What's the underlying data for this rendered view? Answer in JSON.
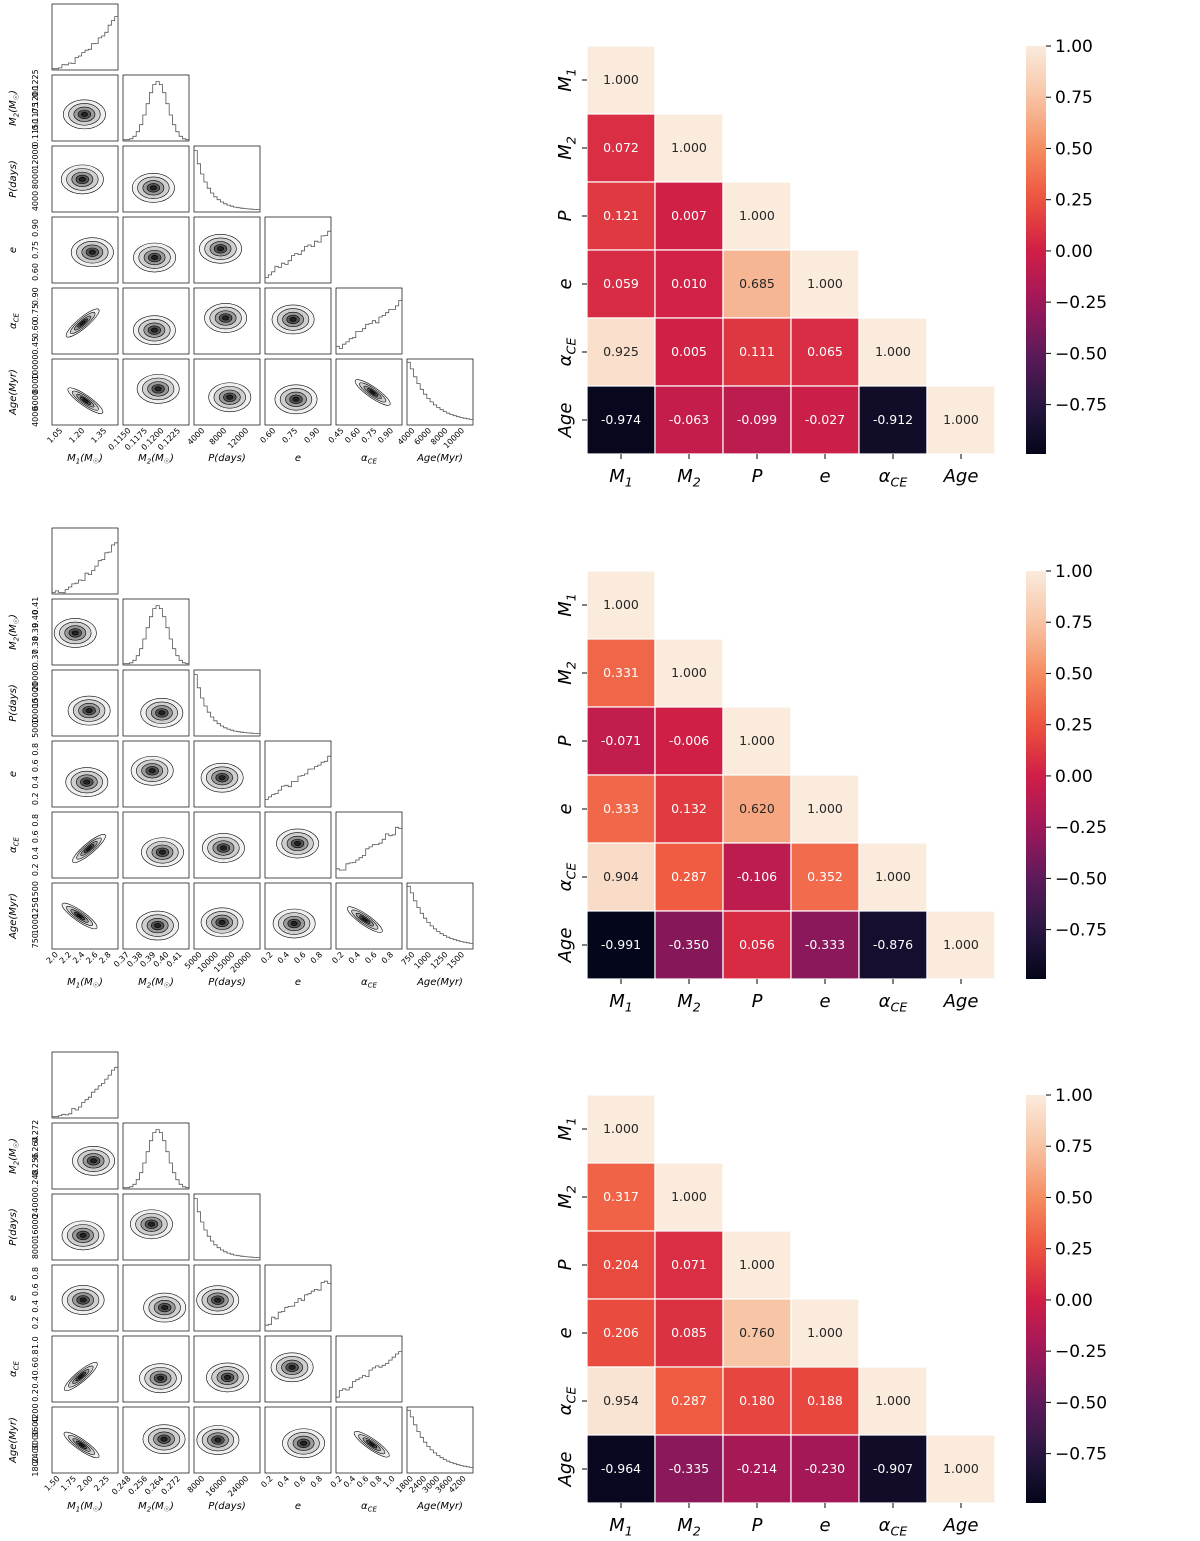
{
  "chart_data": [
    {
      "type": "corner",
      "panel": 1,
      "axis_labels": [
        "M_1(M_☉)",
        "M_2(M_☉)",
        "P(days)",
        "e",
        "α_CE",
        "Age(Myr)"
      ],
      "ticks": [
        [
          "1.05",
          "1.20",
          "1.35"
        ],
        [
          "0.1150",
          "0.1175",
          "0.1200",
          "0.1225"
        ],
        [
          "4000",
          "8000",
          "12000"
        ],
        [
          "0.60",
          "0.75",
          "0.90"
        ],
        [
          "0.45",
          "0.60",
          "0.75",
          "0.90"
        ],
        [
          "4000",
          "6000",
          "8000",
          "10000"
        ]
      ]
    },
    {
      "type": "heatmap",
      "panel": 1,
      "labels": [
        "M_1",
        "M_2",
        "P",
        "e",
        "α_CE",
        "Age"
      ],
      "matrix": [
        [
          1.0
        ],
        [
          0.072,
          1.0
        ],
        [
          0.121,
          0.007,
          1.0
        ],
        [
          0.059,
          0.01,
          0.685,
          1.0
        ],
        [
          0.925,
          0.005,
          0.111,
          0.065,
          1.0
        ],
        [
          -0.974,
          -0.063,
          -0.099,
          -0.027,
          -0.912,
          1.0
        ]
      ],
      "colorbar": {
        "range": [
          -1.0,
          1.0
        ],
        "ticks": [
          "1.00",
          "0.75",
          "0.50",
          "0.25",
          "0.00",
          "−0.25",
          "−0.50",
          "−0.75"
        ]
      }
    },
    {
      "type": "corner",
      "panel": 2,
      "axis_labels": [
        "M_1(M_☉)",
        "M_2(M_☉)",
        "P(days)",
        "e",
        "α_CE",
        "Age(Myr)"
      ],
      "ticks": [
        [
          "2.0",
          "2.2",
          "2.4",
          "2.6",
          "2.8"
        ],
        [
          "0.37",
          "0.38",
          "0.39",
          "0.40",
          "0.41"
        ],
        [
          "5000",
          "10000",
          "15000",
          "20000"
        ],
        [
          "0.2",
          "0.4",
          "0.6",
          "0.8"
        ],
        [
          "0.2",
          "0.4",
          "0.6",
          "0.8"
        ],
        [
          "750",
          "1000",
          "1250",
          "1500"
        ]
      ]
    },
    {
      "type": "heatmap",
      "panel": 2,
      "labels": [
        "M_1",
        "M_2",
        "P",
        "e",
        "α_CE",
        "Age"
      ],
      "matrix": [
        [
          1.0
        ],
        [
          0.331,
          1.0
        ],
        [
          -0.071,
          -0.006,
          1.0
        ],
        [
          0.333,
          0.132,
          0.62,
          1.0
        ],
        [
          0.904,
          0.287,
          -0.106,
          0.352,
          1.0
        ],
        [
          -0.991,
          -0.35,
          0.056,
          -0.333,
          -0.876,
          1.0
        ]
      ],
      "colorbar": {
        "range": [
          -1.0,
          1.0
        ],
        "ticks": [
          "1.00",
          "0.75",
          "0.50",
          "0.25",
          "0.00",
          "−0.25",
          "−0.50",
          "−0.75"
        ]
      }
    },
    {
      "type": "corner",
      "panel": 3,
      "axis_labels": [
        "M_1(M_☉)",
        "M_2(M_☉)",
        "P(days)",
        "e",
        "α_CE",
        "Age(Myr)"
      ],
      "ticks": [
        [
          "1.50",
          "1.75",
          "2.00",
          "2.25"
        ],
        [
          "0.248",
          "0.256",
          "0.264",
          "0.272"
        ],
        [
          "8000",
          "16000",
          "24000"
        ],
        [
          "0.2",
          "0.4",
          "0.6",
          "0.8"
        ],
        [
          "0.2",
          "0.4",
          "0.6",
          "0.8",
          "1.0"
        ],
        [
          "1800",
          "2400",
          "3000",
          "3600",
          "4200"
        ]
      ]
    },
    {
      "type": "heatmap",
      "panel": 3,
      "labels": [
        "M_1",
        "M_2",
        "P",
        "e",
        "α_CE",
        "Age"
      ],
      "matrix": [
        [
          1.0
        ],
        [
          0.317,
          1.0
        ],
        [
          0.204,
          0.071,
          1.0
        ],
        [
          0.206,
          0.085,
          0.76,
          1.0
        ],
        [
          0.954,
          0.287,
          0.18,
          0.188,
          1.0
        ],
        [
          -0.964,
          -0.335,
          -0.214,
          -0.23,
          -0.907,
          1.0
        ]
      ],
      "colorbar": {
        "range": [
          -1.0,
          1.0
        ],
        "ticks": [
          "1.00",
          "0.75",
          "0.50",
          "0.25",
          "0.00",
          "−0.25",
          "−0.50",
          "−0.75"
        ]
      }
    }
  ]
}
